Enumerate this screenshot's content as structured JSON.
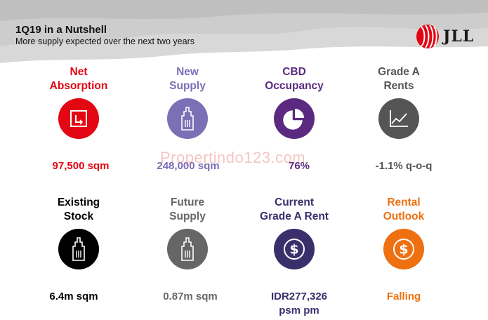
{
  "header": {
    "title": "1Q19 in a Nutshell",
    "subtitle": "More supply expected over the next two years"
  },
  "logo": {
    "text": "JLL",
    "color": "#e30613"
  },
  "watermark": "Propertindo123.com",
  "tiles": [
    {
      "label_line1": "Net",
      "label_line2": "Absorption",
      "icon": "absorption-icon",
      "color": "#e30613",
      "value": "97,500 sqm"
    },
    {
      "label_line1": "New",
      "label_line2": "Supply",
      "icon": "building-icon",
      "color": "#7b6fb6",
      "value": "248,000 sqm"
    },
    {
      "label_line1": "CBD",
      "label_line2": "Occupancy",
      "icon": "pie-chart-icon",
      "color": "#5b2a80",
      "value": "76%"
    },
    {
      "label_line1": "Grade A",
      "label_line2": "Rents",
      "icon": "line-chart-icon",
      "color": "#555555",
      "value": "-1.1% q-o-q"
    },
    {
      "label_line1": "Existing",
      "label_line2": "Stock",
      "icon": "building-icon",
      "color": "#000000",
      "value": "6.4m sqm"
    },
    {
      "label_line1": "Future",
      "label_line2": "Supply",
      "icon": "building-icon",
      "color": "#666666",
      "value": "0.87m sqm"
    },
    {
      "label_line1": "Current",
      "label_line2": "Grade A Rent",
      "icon": "dollar-icon",
      "color": "#3a2f6b",
      "value_line1": "IDR277,326",
      "value_line2": "psm pm"
    },
    {
      "label_line1": "Rental",
      "label_line2": "Outlook",
      "icon": "dollar-icon",
      "color": "#ee7011",
      "value": "Falling"
    }
  ]
}
